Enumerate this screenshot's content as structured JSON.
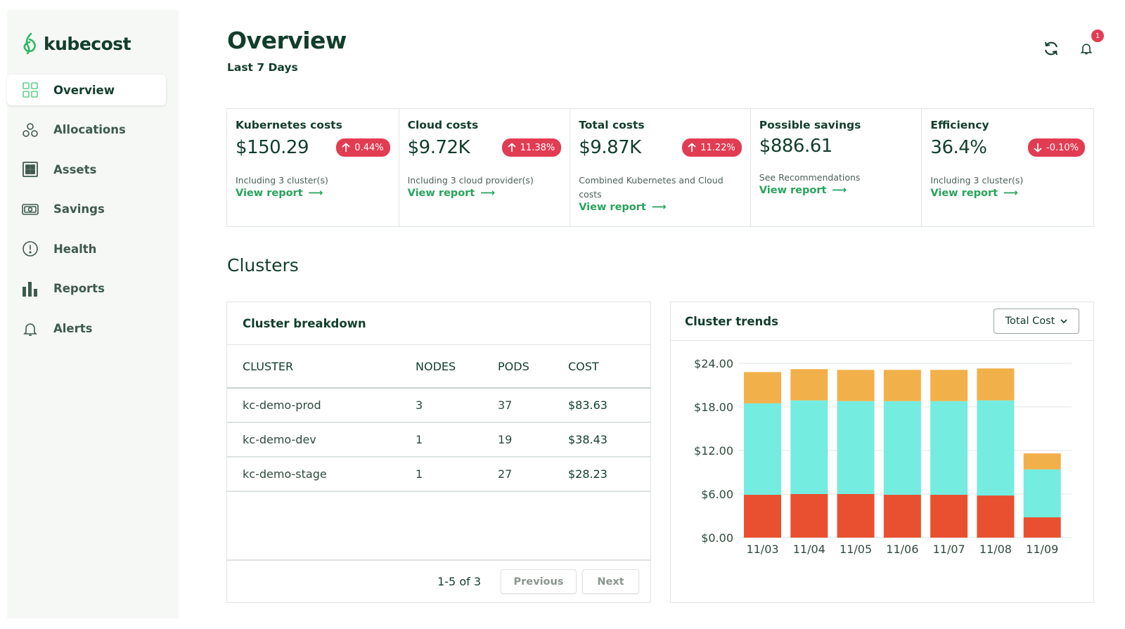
{
  "app": {
    "logo_text": "kubecost"
  },
  "sidebar": {
    "items": [
      {
        "label": "Overview",
        "icon": "grid-icon",
        "active": true
      },
      {
        "label": "Allocations",
        "icon": "circles-icon",
        "active": false
      },
      {
        "label": "Assets",
        "icon": "assets-icon",
        "active": false
      },
      {
        "label": "Savings",
        "icon": "money-icon",
        "active": false
      },
      {
        "label": "Health",
        "icon": "alert-circle-icon",
        "active": false
      },
      {
        "label": "Reports",
        "icon": "bar-chart-icon",
        "active": false
      },
      {
        "label": "Alerts",
        "icon": "bell-icon",
        "active": false
      }
    ]
  },
  "header": {
    "title": "Overview",
    "subtitle": "Last 7 Days",
    "notification_count": "1"
  },
  "kpis": [
    {
      "title": "Kubernetes costs",
      "value": "$150.29",
      "change": "0.44%",
      "direction": "up",
      "desc": "Including 3 cluster(s)",
      "link": "View report"
    },
    {
      "title": "Cloud costs",
      "value": "$9.72K",
      "change": "11.38%",
      "direction": "up",
      "desc": "Including 3 cloud provider(s)",
      "link": "View report"
    },
    {
      "title": "Total costs",
      "value": "$9.87K",
      "change": "11.22%",
      "direction": "up",
      "desc": "Combined Kubernetes and Cloud costs",
      "link": "View report"
    },
    {
      "title": "Possible savings",
      "value": "$886.61",
      "change": "",
      "direction": "",
      "desc": "See Recommendations",
      "link": "View report"
    },
    {
      "title": "Efficiency",
      "value": "36.4%",
      "change": "-0.10%",
      "direction": "down",
      "desc": "Including 3 cluster(s)",
      "link": "View report"
    }
  ],
  "clusters": {
    "section_title": "Clusters",
    "breakdown": {
      "title": "Cluster breakdown",
      "columns": [
        "CLUSTER",
        "NODES",
        "PODS",
        "COST"
      ],
      "rows": [
        [
          "kc-demo-prod",
          "3",
          "37",
          "$83.63"
        ],
        [
          "kc-demo-dev",
          "1",
          "19",
          "$38.43"
        ],
        [
          "kc-demo-stage",
          "1",
          "27",
          "$28.23"
        ]
      ],
      "pagination": "1-5 of 3",
      "prev_label": "Previous",
      "next_label": "Next"
    },
    "trends": {
      "title": "Cluster trends",
      "select_value": "Total Cost"
    }
  },
  "colors": {
    "accent": "#27a35a",
    "badge": "#e23c53",
    "series_red": "#e8502f",
    "series_teal": "#74ecdf",
    "series_orange": "#f2b04a"
  },
  "chart_data": {
    "type": "bar",
    "stacked": true,
    "categories": [
      "11/03",
      "11/04",
      "11/05",
      "11/06",
      "11/07",
      "11/08",
      "11/09"
    ],
    "series": [
      {
        "values": [
          5.9,
          6.0,
          6.0,
          5.9,
          5.9,
          5.8,
          2.8
        ],
        "color": "#e8502f"
      },
      {
        "values": [
          12.6,
          12.9,
          12.8,
          12.9,
          12.9,
          13.1,
          6.6
        ],
        "color": "#74ecdf"
      },
      {
        "values": [
          4.3,
          4.3,
          4.3,
          4.3,
          4.3,
          4.4,
          2.2
        ],
        "color": "#f2b04a"
      }
    ],
    "yticks": [
      "$24.00",
      "$18.00",
      "$12.00",
      "$6.00",
      "$0.00"
    ],
    "ylim": [
      0,
      24
    ],
    "grid": true
  }
}
